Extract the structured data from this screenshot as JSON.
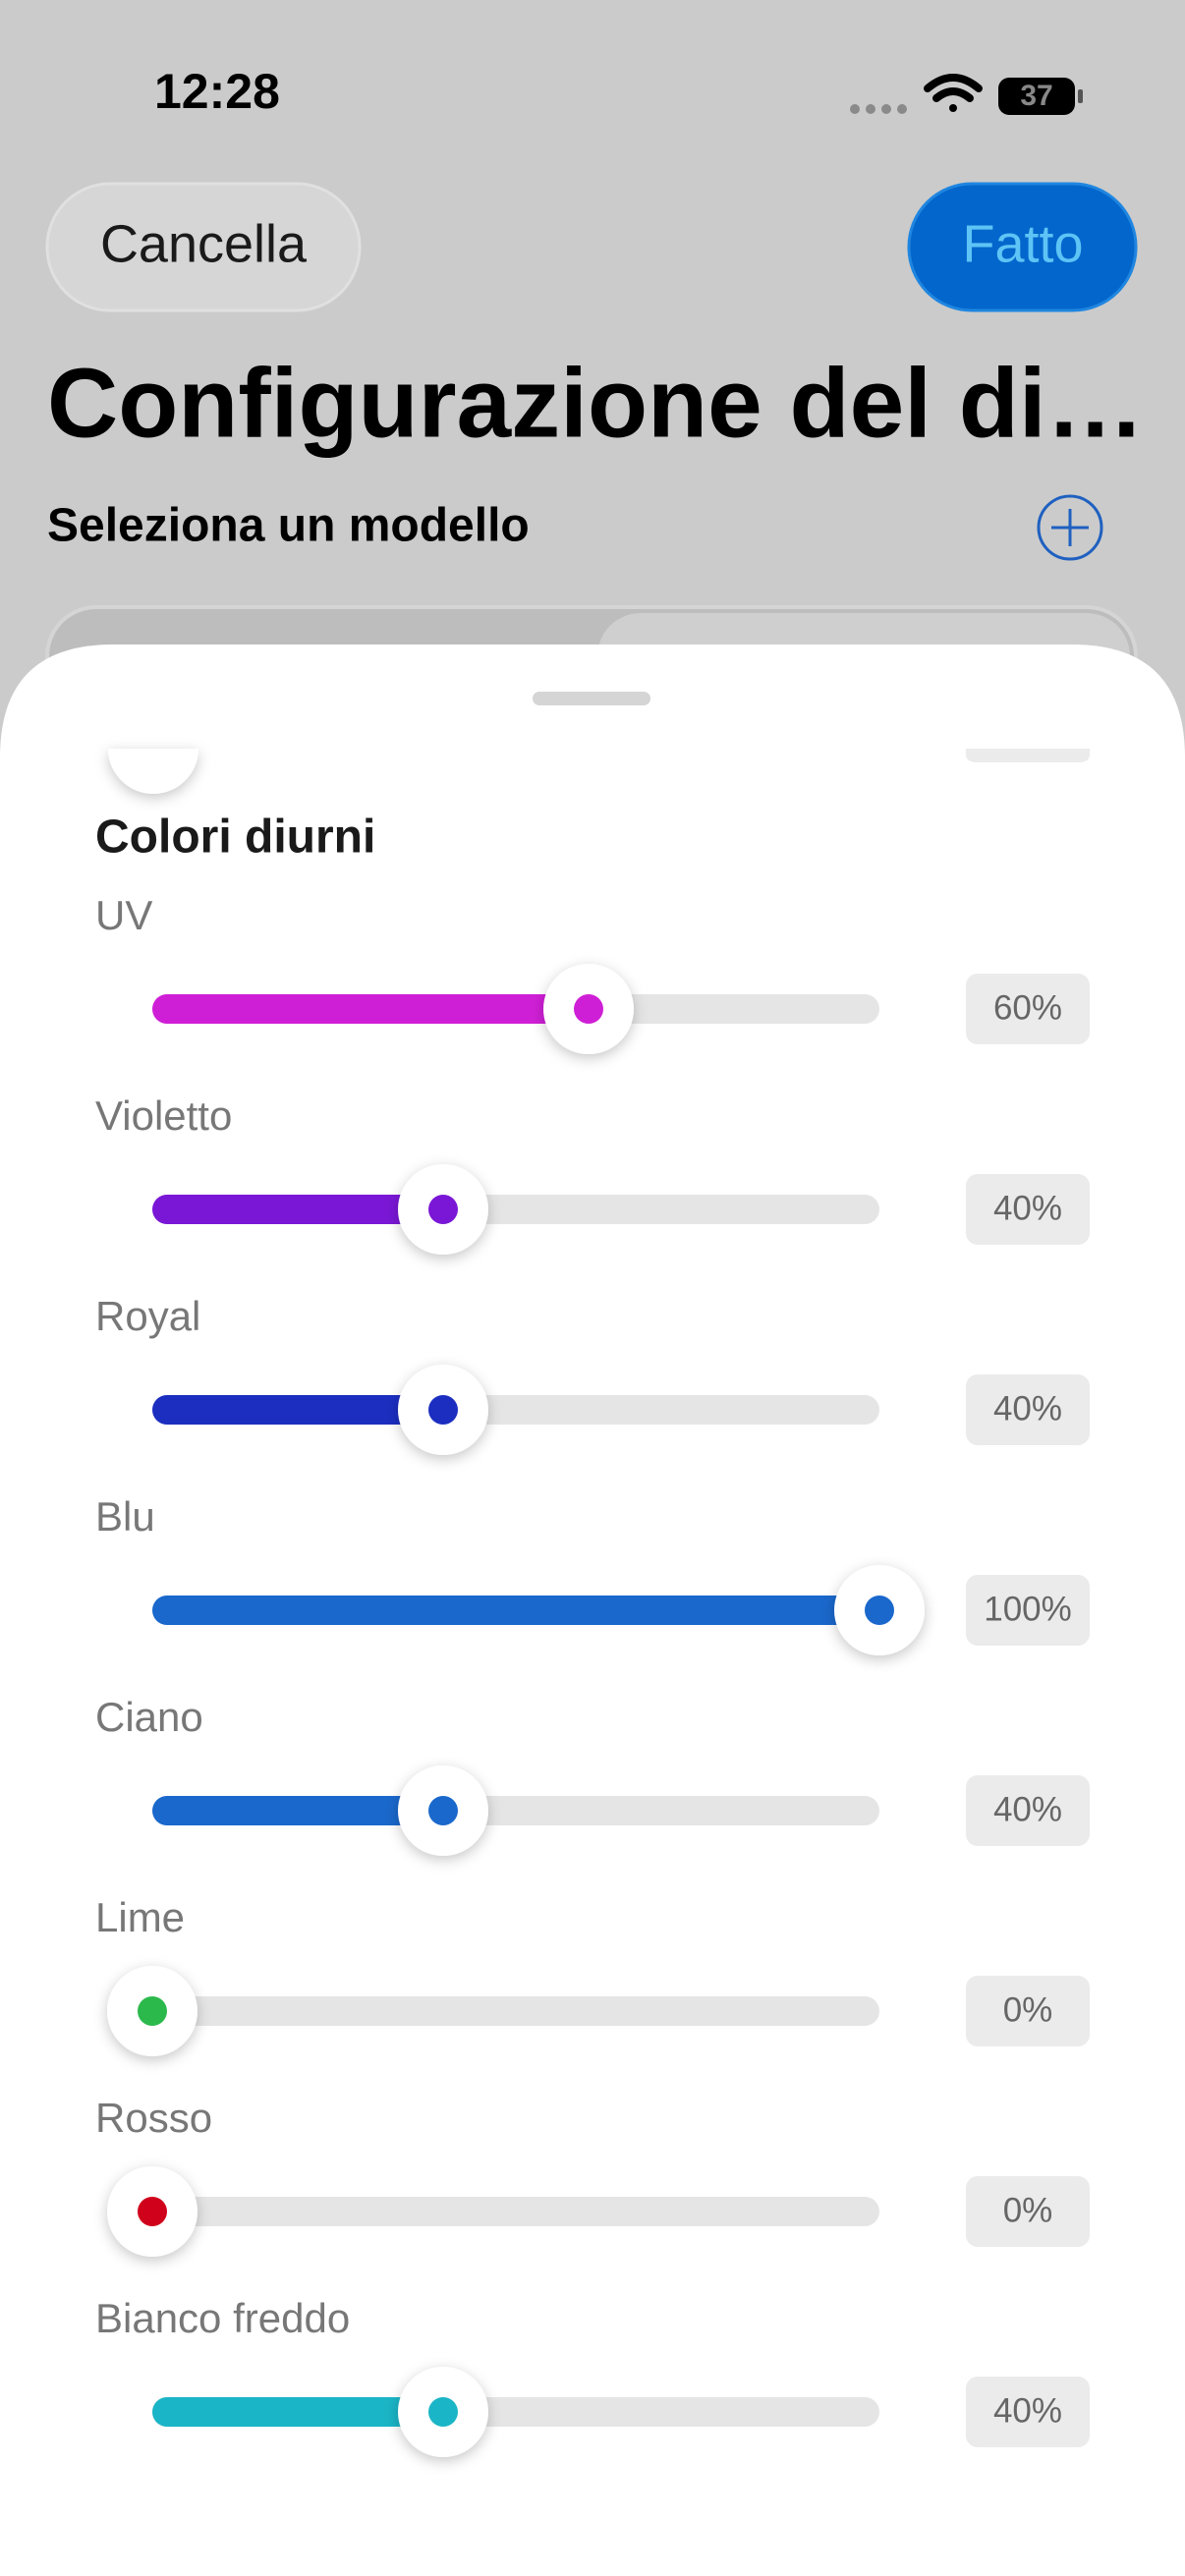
{
  "status_bar": {
    "time": "12:28",
    "battery": "37"
  },
  "header": {
    "cancel": "Cancella",
    "done": "Fatto",
    "title": "Configurazione del di…",
    "subtitle": "Seleziona un modello"
  },
  "section": {
    "title": "Colori diurni",
    "range": [
      0,
      100
    ],
    "sliders": [
      {
        "label": "UV",
        "value": 60,
        "value_label": "60%",
        "color": "#cf1fd6"
      },
      {
        "label": "Violetto",
        "value": 40,
        "value_label": "40%",
        "color": "#7a17d6"
      },
      {
        "label": "Royal",
        "value": 40,
        "value_label": "40%",
        "color": "#1b2ec0"
      },
      {
        "label": "Blu",
        "value": 100,
        "value_label": "100%",
        "color": "#1a68cc"
      },
      {
        "label": "Ciano",
        "value": 40,
        "value_label": "40%",
        "color": "#1a68cc"
      },
      {
        "label": "Lime",
        "value": 0,
        "value_label": "0%",
        "color": "#2cb94c"
      },
      {
        "label": "Rosso",
        "value": 0,
        "value_label": "0%",
        "color": "#d0021b"
      },
      {
        "label": "Bianco freddo",
        "value": 40,
        "value_label": "40%",
        "color": "#1ab5c6"
      }
    ]
  }
}
